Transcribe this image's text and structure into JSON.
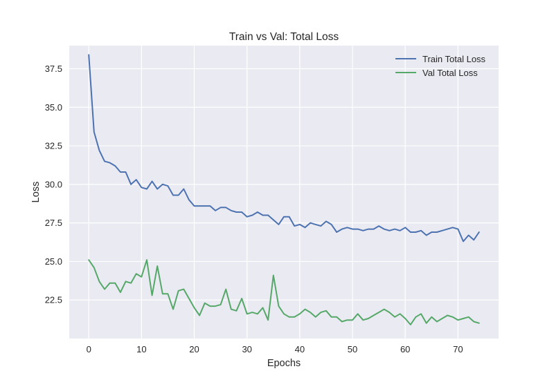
{
  "chart_data": {
    "type": "line",
    "title": "Train vs Val: Total Loss",
    "xlabel": "Epochs",
    "ylabel": "Loss",
    "xlim": [
      -3.7,
      77.7
    ],
    "ylim": [
      20.0,
      39.0
    ],
    "xticks": [
      0,
      10,
      20,
      30,
      40,
      50,
      60,
      70
    ],
    "xtick_labels": [
      "0",
      "10",
      "20",
      "30",
      "40",
      "50",
      "60",
      "70"
    ],
    "yticks": [
      22.5,
      25.0,
      27.5,
      30.0,
      32.5,
      35.0,
      37.5
    ],
    "ytick_labels": [
      "22.5",
      "25.0",
      "27.5",
      "30.0",
      "32.5",
      "35.0",
      "37.5"
    ],
    "grid": true,
    "legend_position": "top-right",
    "x": [
      0,
      1,
      2,
      3,
      4,
      5,
      6,
      7,
      8,
      9,
      10,
      11,
      12,
      13,
      14,
      15,
      16,
      17,
      18,
      19,
      20,
      21,
      22,
      23,
      24,
      25,
      26,
      27,
      28,
      29,
      30,
      31,
      32,
      33,
      34,
      35,
      36,
      37,
      38,
      39,
      40,
      41,
      42,
      43,
      44,
      45,
      46,
      47,
      48,
      49,
      50,
      51,
      52,
      53,
      54,
      55,
      56,
      57,
      58,
      59,
      60,
      61,
      62,
      63,
      64,
      65,
      66,
      67,
      68,
      69,
      70,
      71,
      72,
      73,
      74
    ],
    "series": [
      {
        "name": "Train Total Loss",
        "color": "#4c72b0",
        "values": [
          38.4,
          33.4,
          32.2,
          31.5,
          31.4,
          31.2,
          30.8,
          30.8,
          30.0,
          30.3,
          29.8,
          29.7,
          30.2,
          29.7,
          30.0,
          29.9,
          29.3,
          29.3,
          29.7,
          29.0,
          28.6,
          28.6,
          28.6,
          28.6,
          28.3,
          28.5,
          28.5,
          28.3,
          28.2,
          28.2,
          27.9,
          28.0,
          28.2,
          28.0,
          28.0,
          27.7,
          27.4,
          27.9,
          27.9,
          27.3,
          27.4,
          27.2,
          27.5,
          27.4,
          27.3,
          27.6,
          27.4,
          26.9,
          27.1,
          27.2,
          27.1,
          27.1,
          27.0,
          27.1,
          27.1,
          27.3,
          27.1,
          27.0,
          27.1,
          27.0,
          27.2,
          26.9,
          26.9,
          27.0,
          26.7,
          26.9,
          26.9,
          27.0,
          27.1,
          27.2,
          27.1,
          26.3,
          26.7,
          26.4,
          26.9
        ]
      },
      {
        "name": "Val Total Loss",
        "color": "#55a868",
        "values": [
          25.1,
          24.6,
          23.7,
          23.2,
          23.6,
          23.6,
          23.0,
          23.7,
          23.6,
          24.2,
          24.0,
          25.1,
          22.8,
          24.7,
          22.9,
          22.9,
          21.9,
          23.1,
          23.2,
          22.6,
          22.0,
          21.5,
          22.3,
          22.1,
          22.1,
          22.2,
          23.2,
          21.9,
          21.8,
          22.6,
          21.6,
          21.7,
          21.6,
          22.0,
          21.2,
          24.1,
          22.1,
          21.6,
          21.4,
          21.4,
          21.6,
          21.9,
          21.7,
          21.4,
          21.7,
          21.8,
          21.4,
          21.4,
          21.1,
          21.2,
          21.2,
          21.6,
          21.2,
          21.3,
          21.5,
          21.7,
          21.9,
          21.7,
          21.4,
          21.6,
          21.3,
          20.9,
          21.4,
          21.6,
          21.0,
          21.4,
          21.1,
          21.3,
          21.5,
          21.4,
          21.2,
          21.3,
          21.4,
          21.1,
          21.0
        ]
      }
    ]
  }
}
